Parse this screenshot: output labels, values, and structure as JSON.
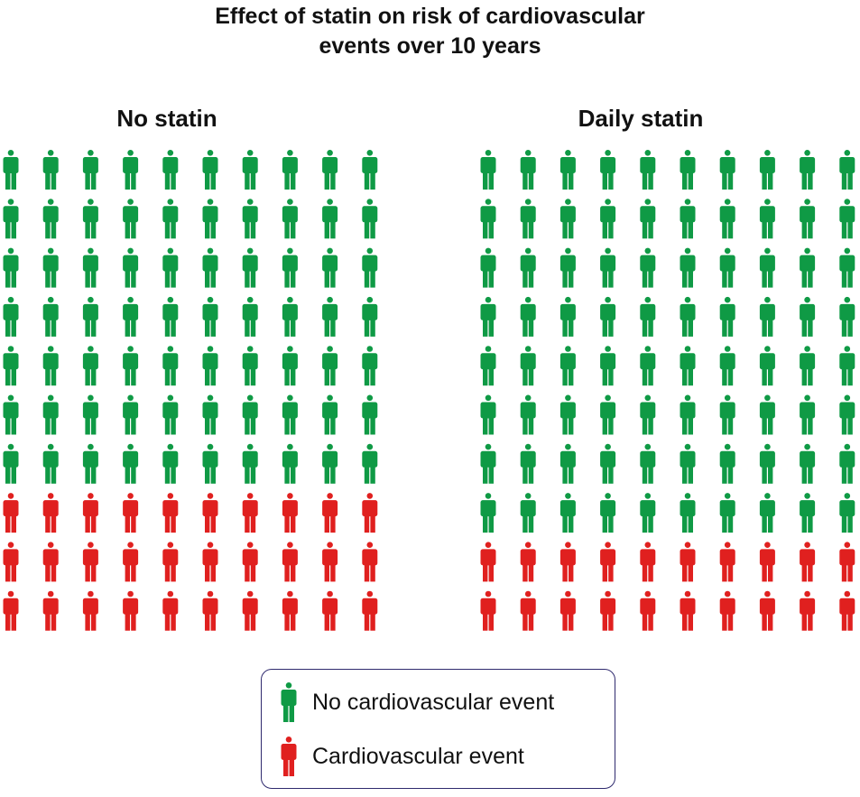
{
  "chart_data": {
    "type": "pictogram",
    "title_lines": [
      "Effect of statin on risk of cardiovascular",
      "events over 10 years"
    ],
    "colors": {
      "no_event": "#0f9a45",
      "event": "#e0201f"
    },
    "groups": [
      {
        "name": "No statin",
        "total": 100,
        "no_event": 70,
        "event": 30
      },
      {
        "name": "Daily statin",
        "total": 100,
        "no_event": 80,
        "event": 20
      }
    ],
    "grid": {
      "columns": 10,
      "rows": 10
    },
    "legend": [
      {
        "key": "no_event",
        "label": "No cardiovascular event"
      },
      {
        "key": "event",
        "label": "Cardiovascular event"
      }
    ]
  }
}
